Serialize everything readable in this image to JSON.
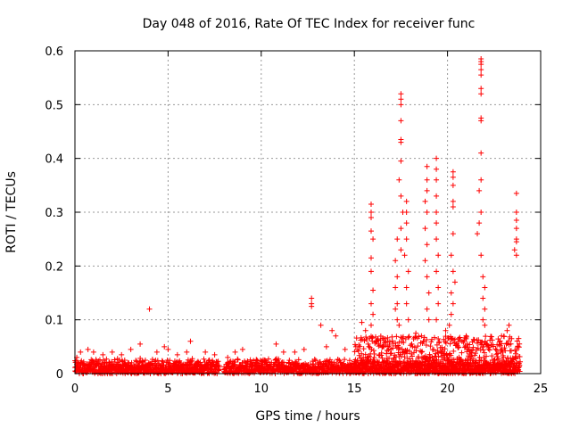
{
  "chart_data": {
    "type": "scatter",
    "title": "Day 048 of 2016, Rate Of TEC Index for receiver func",
    "xlabel": "GPS time / hours",
    "ylabel": "ROTI / TECUs",
    "xlim": [
      0,
      25
    ],
    "ylim": [
      0,
      0.6
    ],
    "xticks": [
      "0",
      "5",
      "10",
      "15",
      "20",
      "25"
    ],
    "yticks": [
      "0",
      "0.1",
      "0.2",
      "0.3",
      "0.4",
      "0.5",
      "0.6"
    ],
    "grid": true,
    "marker": "+",
    "color": "#ff0000",
    "series": [
      {
        "name": "ROTI",
        "points": [
          [
            4.0,
            0.12
          ],
          [
            6.2,
            0.06
          ],
          [
            3.5,
            0.055
          ],
          [
            4.8,
            0.05
          ],
          [
            10.8,
            0.055
          ],
          [
            12.7,
            0.14
          ],
          [
            12.7,
            0.13
          ],
          [
            12.7,
            0.125
          ],
          [
            13.2,
            0.09
          ],
          [
            13.8,
            0.08
          ],
          [
            14.0,
            0.07
          ],
          [
            15.4,
            0.095
          ],
          [
            15.6,
            0.08
          ],
          [
            15.9,
            0.315
          ],
          [
            15.9,
            0.3
          ],
          [
            15.9,
            0.29
          ],
          [
            15.9,
            0.265
          ],
          [
            16.0,
            0.25
          ],
          [
            15.9,
            0.215
          ],
          [
            15.9,
            0.19
          ],
          [
            16.0,
            0.155
          ],
          [
            15.9,
            0.13
          ],
          [
            16.0,
            0.11
          ],
          [
            15.9,
            0.09
          ],
          [
            17.5,
            0.52
          ],
          [
            17.5,
            0.51
          ],
          [
            17.5,
            0.5
          ],
          [
            17.5,
            0.47
          ],
          [
            17.5,
            0.435
          ],
          [
            17.5,
            0.43
          ],
          [
            17.5,
            0.395
          ],
          [
            17.4,
            0.36
          ],
          [
            17.5,
            0.33
          ],
          [
            17.6,
            0.3
          ],
          [
            17.5,
            0.27
          ],
          [
            17.3,
            0.25
          ],
          [
            17.5,
            0.23
          ],
          [
            17.2,
            0.21
          ],
          [
            17.3,
            0.18
          ],
          [
            17.2,
            0.16
          ],
          [
            17.3,
            0.13
          ],
          [
            17.2,
            0.12
          ],
          [
            17.3,
            0.1
          ],
          [
            17.4,
            0.09
          ],
          [
            17.8,
            0.32
          ],
          [
            17.8,
            0.3
          ],
          [
            17.8,
            0.28
          ],
          [
            17.8,
            0.25
          ],
          [
            17.7,
            0.22
          ],
          [
            17.9,
            0.19
          ],
          [
            17.8,
            0.16
          ],
          [
            17.8,
            0.13
          ],
          [
            17.9,
            0.1
          ],
          [
            18.9,
            0.385
          ],
          [
            18.9,
            0.36
          ],
          [
            18.9,
            0.34
          ],
          [
            18.8,
            0.32
          ],
          [
            18.9,
            0.3
          ],
          [
            18.8,
            0.27
          ],
          [
            18.9,
            0.24
          ],
          [
            18.8,
            0.21
          ],
          [
            18.9,
            0.18
          ],
          [
            19.0,
            0.15
          ],
          [
            18.9,
            0.12
          ],
          [
            19.0,
            0.1
          ],
          [
            19.4,
            0.4
          ],
          [
            19.4,
            0.38
          ],
          [
            19.4,
            0.36
          ],
          [
            19.4,
            0.33
          ],
          [
            19.4,
            0.3
          ],
          [
            19.4,
            0.28
          ],
          [
            19.4,
            0.25
          ],
          [
            19.5,
            0.22
          ],
          [
            19.4,
            0.19
          ],
          [
            19.5,
            0.16
          ],
          [
            19.5,
            0.13
          ],
          [
            19.4,
            0.1
          ],
          [
            20.3,
            0.375
          ],
          [
            20.3,
            0.365
          ],
          [
            20.3,
            0.35
          ],
          [
            20.3,
            0.32
          ],
          [
            20.3,
            0.31
          ],
          [
            20.3,
            0.26
          ],
          [
            20.2,
            0.22
          ],
          [
            20.3,
            0.19
          ],
          [
            20.4,
            0.17
          ],
          [
            20.2,
            0.15
          ],
          [
            20.3,
            0.13
          ],
          [
            20.2,
            0.11
          ],
          [
            20.1,
            0.09
          ],
          [
            19.9,
            0.08
          ],
          [
            21.8,
            0.585
          ],
          [
            21.8,
            0.58
          ],
          [
            21.8,
            0.575
          ],
          [
            21.8,
            0.565
          ],
          [
            21.8,
            0.555
          ],
          [
            21.8,
            0.53
          ],
          [
            21.8,
            0.52
          ],
          [
            21.8,
            0.475
          ],
          [
            21.8,
            0.47
          ],
          [
            21.8,
            0.41
          ],
          [
            21.8,
            0.36
          ],
          [
            21.7,
            0.34
          ],
          [
            21.8,
            0.3
          ],
          [
            21.7,
            0.28
          ],
          [
            21.6,
            0.26
          ],
          [
            21.8,
            0.22
          ],
          [
            21.9,
            0.18
          ],
          [
            22.0,
            0.16
          ],
          [
            21.9,
            0.14
          ],
          [
            22.0,
            0.12
          ],
          [
            21.9,
            0.1
          ],
          [
            22.0,
            0.09
          ],
          [
            23.7,
            0.335
          ],
          [
            23.7,
            0.3
          ],
          [
            23.7,
            0.285
          ],
          [
            23.7,
            0.27
          ],
          [
            23.7,
            0.25
          ],
          [
            23.7,
            0.245
          ],
          [
            23.6,
            0.23
          ],
          [
            23.7,
            0.22
          ],
          [
            23.3,
            0.09
          ],
          [
            23.2,
            0.08
          ],
          [
            22.9,
            0.07
          ],
          [
            21.0,
            0.07
          ],
          [
            20.6,
            0.065
          ],
          [
            18.3,
            0.075
          ],
          [
            18.6,
            0.07
          ],
          [
            16.8,
            0.06
          ],
          [
            16.3,
            0.055
          ],
          [
            14.5,
            0.045
          ],
          [
            13.5,
            0.05
          ],
          [
            12.3,
            0.045
          ],
          [
            11.8,
            0.04
          ],
          [
            11.2,
            0.04
          ],
          [
            9.0,
            0.045
          ],
          [
            8.6,
            0.04
          ],
          [
            8.2,
            0.03
          ],
          [
            7.5,
            0.035
          ],
          [
            7.0,
            0.04
          ],
          [
            6.0,
            0.04
          ],
          [
            5.5,
            0.035
          ],
          [
            5.0,
            0.045
          ],
          [
            4.4,
            0.04
          ],
          [
            3.0,
            0.045
          ],
          [
            2.5,
            0.035
          ],
          [
            2.0,
            0.04
          ],
          [
            1.5,
            0.035
          ],
          [
            1.0,
            0.04
          ],
          [
            0.7,
            0.045
          ],
          [
            0.3,
            0.04
          ],
          [
            0.1,
            0.03
          ]
        ],
        "baseline": {
          "x_start": 0.0,
          "x_end": 23.9,
          "y_min": 0.0,
          "y_max": 0.03
        }
      }
    ]
  }
}
